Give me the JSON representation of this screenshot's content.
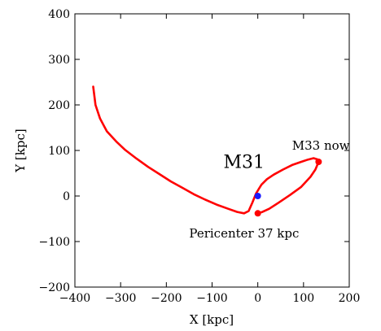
{
  "chart_data": {
    "type": "line",
    "xlabel": "X [kpc]",
    "ylabel": "Y [kpc]",
    "xlim": [
      -400,
      200
    ],
    "ylim": [
      -200,
      400
    ],
    "xticks": [
      -400,
      -300,
      -200,
      -100,
      0,
      100,
      200
    ],
    "yticks": [
      -200,
      -100,
      0,
      100,
      200,
      300,
      400
    ],
    "xtick_labels": [
      "−400",
      "−300",
      "−200",
      "−100",
      "0",
      "100",
      "200"
    ],
    "ytick_labels": [
      "−200",
      "−100",
      "0",
      "100",
      "200",
      "300",
      "400"
    ],
    "grid": false,
    "series": [
      {
        "color": "#ff0000",
        "x": [
          -360,
          -355,
          -345,
          -330,
          -310,
          -290,
          -265,
          -240,
          -215,
          -190,
          -165,
          -140,
          -115,
          -90,
          -65,
          -45,
          -30,
          -20,
          -12,
          -4,
          3,
          8,
          20,
          35,
          55,
          75,
          95,
          110,
          122,
          132,
          133,
          126,
          115,
          95,
          70,
          45,
          25,
          10,
          0
        ],
        "y": [
          240,
          200,
          170,
          142,
          120,
          101,
          82,
          64,
          48,
          32,
          18,
          4,
          -8,
          -19,
          -28,
          -35,
          -38,
          -33,
          -15,
          5,
          17,
          25,
          37,
          47,
          58,
          68,
          75,
          80,
          83,
          80,
          75,
          58,
          42,
          20,
          2,
          -15,
          -28,
          -35,
          -38
        ]
      }
    ],
    "markers": [
      {
        "x": 133,
        "y": 75,
        "color": "#ff0000"
      },
      {
        "x": 0,
        "y": -38,
        "color": "#ff0000"
      },
      {
        "x": 0,
        "y": 0,
        "color": "#1a1aff"
      }
    ],
    "annotations": [
      {
        "key": "m31",
        "text": "M31",
        "x": -75,
        "y": 62,
        "size": 22
      },
      {
        "key": "m33",
        "text": "M33 now",
        "x": 75,
        "y": 102,
        "size": 15
      },
      {
        "key": "peri",
        "text": "Pericenter 37 kpc",
        "x": -150,
        "y": -91,
        "size": 15
      }
    ]
  }
}
